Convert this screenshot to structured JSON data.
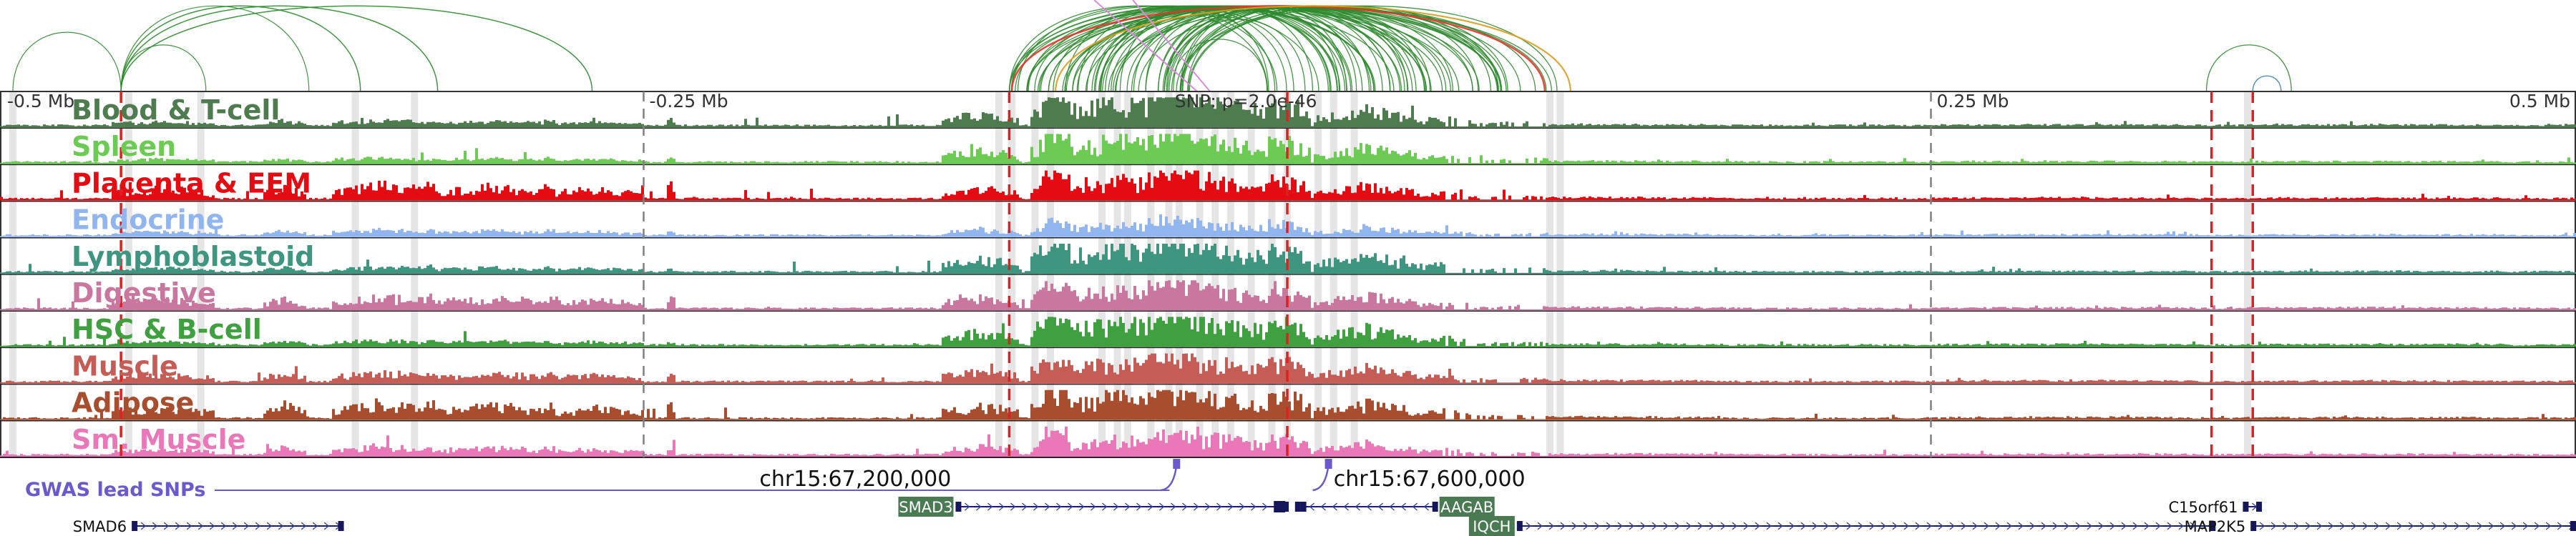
{
  "chart_data": {
    "type": "genome-browser",
    "region": {
      "chrom": "chr15",
      "start_mb": -0.5,
      "end_mb": 0.5
    },
    "axis": {
      "ticks": [
        {
          "pos": -0.5,
          "label": "-0.5 Mb"
        },
        {
          "pos": -0.25,
          "label": "-0.25 Mb"
        },
        {
          "pos": 0.25,
          "label": "0.25 Mb"
        },
        {
          "pos": 0.5,
          "label": "0.5 Mb"
        }
      ],
      "snp_annotation": {
        "pos": -0.0437,
        "label": "SNP: p=2.0e-46"
      }
    },
    "tracks": [
      {
        "name": "Blood & T-cell",
        "color": "#4f7c4f"
      },
      {
        "name": "Spleen",
        "color": "#6ccb52"
      },
      {
        "name": "Placenta & EEM",
        "color": "#e40b12"
      },
      {
        "name": "Endocrine",
        "color": "#91b5ee"
      },
      {
        "name": "Lymphoblastoid",
        "color": "#3f9680"
      },
      {
        "name": "Digestive",
        "color": "#c9779f"
      },
      {
        "name": "HSC & B-cell",
        "color": "#3fa03f"
      },
      {
        "name": "Muscle",
        "color": "#c65c56"
      },
      {
        "name": "Adipose",
        "color": "#a84e2e"
      },
      {
        "name": "Sm. Muscle",
        "color": "#ea78b8"
      }
    ],
    "highlight_regions": [
      -0.495,
      -0.45,
      -0.422,
      -0.362,
      -0.339,
      -0.112,
      -0.107,
      -0.098,
      -0.092,
      -0.072,
      -0.066,
      -0.062,
      -0.053,
      -0.046,
      -0.042,
      -0.034,
      -0.028,
      -0.022,
      -0.014,
      -0.006,
      0.0,
      0.012,
      0.018,
      0.026,
      0.102,
      0.106,
      0.373
    ],
    "red_dashed_lines": [
      -0.453,
      -0.108,
      0.0,
      0.359,
      0.375
    ],
    "gray_dashed_lines": [
      -0.25,
      0.25
    ],
    "coordinate_labels": [
      {
        "pos": -0.205,
        "label": "chr15:67,200,000"
      },
      {
        "pos": 0.018,
        "label": "chr15:67,600,000"
      }
    ],
    "gwas": {
      "label": "GWAS lead SNPs",
      "color": "#6a5acd",
      "snps": [
        -0.043,
        0.016
      ]
    },
    "genes": [
      {
        "name": "SMAD6",
        "start": -0.448,
        "end": -0.367,
        "row": 2,
        "strand": "+",
        "label_side": "left",
        "highlighted": false
      },
      {
        "name": "SMAD3",
        "start": -0.128,
        "end": 0.0,
        "row": 1,
        "strand": "+",
        "label_side": "left",
        "highlighted": true
      },
      {
        "name": "AAGAB",
        "start": 0.006,
        "end": 0.058,
        "row": 1,
        "strand": "-",
        "label_side": "right",
        "highlighted": true
      },
      {
        "name": "IQCH",
        "start": 0.09,
        "end": 0.36,
        "row": 2,
        "strand": "+",
        "label_side": "left",
        "highlighted": true
      },
      {
        "name": "C15orf61",
        "start": 0.372,
        "end": 0.378,
        "row": 1,
        "strand": "+",
        "label_side": "left",
        "highlighted": false
      },
      {
        "name": "MAP2K5",
        "start": 0.375,
        "end": 0.5,
        "row": 2,
        "strand": "+",
        "label_side": "left",
        "highlighted": false
      }
    ],
    "loops_color": "#2f8a2f",
    "loops_highlight_color": "#e6342b",
    "loops_alt_color": "#d98ad9"
  }
}
